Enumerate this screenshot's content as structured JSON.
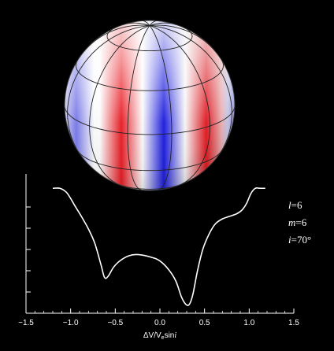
{
  "figure": {
    "sphere": {
      "pattern": "sectoral nonradial pulsation velocity field",
      "colors": {
        "positive": "#e8141c",
        "negative": "#1414e0",
        "neutral": "#ffffff",
        "grid": "#222222"
      }
    },
    "parameters": [
      {
        "symbol": "l",
        "eq": "=",
        "value": "6"
      },
      {
        "symbol": "m",
        "eq": "=",
        "value": "6"
      },
      {
        "symbol": "i",
        "eq": "=",
        "value": "70°"
      }
    ]
  },
  "chart_data": {
    "type": "line",
    "xlabel_parts": {
      "main": "ΔV/V",
      "sub": "e",
      "tail": "sin",
      "tail_italic": "i"
    },
    "ylabel": "",
    "xlim": [
      -1.5,
      1.5
    ],
    "ylim": [
      0,
      1.0
    ],
    "x_ticks": [
      "−1.5",
      "−1.0",
      "−0.5",
      "0.0",
      "0.5",
      "1.0",
      "1.5"
    ],
    "x_tick_values": [
      -1.5,
      -1.0,
      -0.5,
      0.0,
      0.5,
      1.0,
      1.5
    ],
    "y_tick_count": 6,
    "series": [
      {
        "color": "#ffffff",
        "x": [
          -1.2,
          -1.12,
          -1.05,
          -1.0,
          -0.95,
          -0.88,
          -0.8,
          -0.73,
          -0.66,
          -0.62,
          -0.58,
          -0.52,
          -0.45,
          -0.35,
          -0.25,
          -0.1,
          0.0,
          0.1,
          0.18,
          0.24,
          0.29,
          0.33,
          0.37,
          0.42,
          0.48,
          0.55,
          0.62,
          0.7,
          0.78,
          0.86,
          0.92,
          0.97,
          1.02,
          1.07,
          1.12,
          1.18
        ],
        "y": [
          0.98,
          0.98,
          0.95,
          0.9,
          0.84,
          0.76,
          0.66,
          0.55,
          0.38,
          0.28,
          0.29,
          0.36,
          0.41,
          0.45,
          0.46,
          0.44,
          0.41,
          0.34,
          0.25,
          0.13,
          0.07,
          0.07,
          0.15,
          0.33,
          0.5,
          0.62,
          0.7,
          0.74,
          0.76,
          0.78,
          0.81,
          0.86,
          0.94,
          0.98,
          0.98,
          0.98
        ]
      }
    ]
  }
}
